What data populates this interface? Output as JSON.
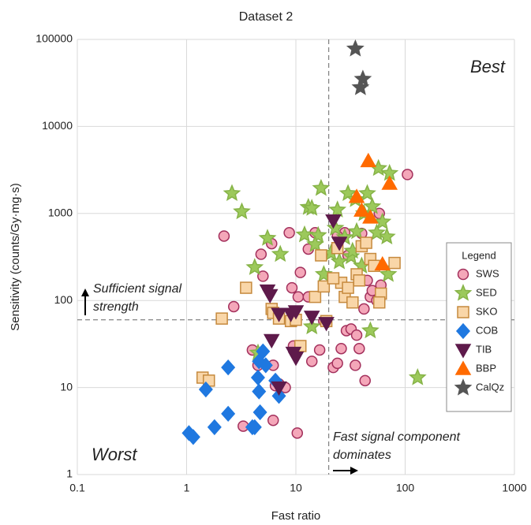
{
  "chart_data": {
    "type": "scatter",
    "title": "Dataset 2",
    "x_label": "Fast ratio",
    "y_label": "Sensitivity (counts/Gy·mg·s)",
    "xlim": [
      0.1,
      1000
    ],
    "ylim": [
      1,
      100000
    ],
    "log_x": true,
    "log_y": true,
    "grid": true,
    "xticks": [
      0.1,
      1,
      10,
      100,
      1000
    ],
    "yticks": [
      1,
      10,
      100,
      1000,
      10000,
      100000
    ],
    "vlines": [
      20
    ],
    "hlines": [
      60
    ],
    "legend_title": "Legend",
    "legend": "right",
    "annotations": [
      "Best",
      "Worst",
      "Sufficient signal",
      "strength",
      "Fast signal component",
      "dominates"
    ],
    "series": [
      {
        "name": "SWS",
        "marker": "circle",
        "color": "#f4a7b9",
        "edgecolor": "#a3305c",
        "x": [
          2.2,
          2.7,
          4.0,
          4.5,
          4.8,
          5,
          6,
          6.2,
          6.5,
          6.2,
          3.3,
          7,
          8,
          8.7,
          9.2,
          9.5,
          10.5,
          11,
          10.3,
          13,
          15,
          13,
          14,
          16.5,
          18,
          22,
          24,
          26,
          28,
          29,
          30,
          32,
          35,
          36,
          38,
          40,
          42,
          43,
          45,
          48,
          50,
          55,
          58,
          60,
          105,
          24
        ],
        "y": [
          550,
          85,
          27,
          18,
          340,
          190,
          450,
          18,
          10.5,
          4.2,
          3.6,
          11,
          10,
          600,
          140,
          30,
          110,
          210,
          3,
          390,
          600,
          110,
          20,
          27,
          58,
          17,
          19,
          28,
          600,
          45,
          330,
          47,
          18,
          40,
          28,
          590,
          80,
          12,
          170,
          110,
          130,
          100,
          1000,
          150,
          2800,
          550
        ]
      },
      {
        "name": "SED",
        "marker": "star",
        "color": "#9cc95b",
        "edgecolor": "#86b347",
        "x": [
          2.6,
          3.2,
          5.5,
          7.2,
          13,
          14,
          17,
          16,
          15,
          12,
          21,
          23,
          24,
          28,
          30,
          32,
          33,
          36,
          40,
          42,
          45,
          50,
          57,
          62,
          68,
          72,
          70,
          48,
          130,
          14,
          4.2,
          4.5,
          25,
          18,
          35,
          55
        ],
        "y": [
          1700,
          1050,
          520,
          340,
          1180,
          1150,
          1950,
          560,
          440,
          570,
          350,
          680,
          1100,
          530,
          1700,
          320,
          370,
          620,
          250,
          1000,
          1700,
          1200,
          3300,
          800,
          540,
          2900,
          200,
          45,
          13,
          50,
          240,
          25,
          280,
          200,
          1450,
          600
        ]
      },
      {
        "name": "SKO",
        "marker": "square",
        "color": "#f9d6a8",
        "edgecolor": "#c68a3e",
        "x": [
          1.4,
          1.6,
          2.1,
          3.5,
          6,
          6.2,
          7,
          9,
          10,
          11,
          15,
          17,
          18,
          19,
          24,
          26,
          28,
          30,
          33,
          36,
          38,
          40,
          44,
          48,
          52,
          60,
          58,
          80,
          22
        ],
        "y": [
          13,
          12,
          62,
          140,
          80,
          72,
          62,
          58,
          60,
          30,
          110,
          330,
          145,
          58,
          400,
          160,
          110,
          140,
          95,
          200,
          170,
          420,
          460,
          300,
          250,
          120,
          95,
          270,
          180
        ]
      },
      {
        "name": "COB",
        "marker": "diamond",
        "color": "#1f78e0",
        "edgecolor": "#1f78e0",
        "x": [
          1.05,
          1.15,
          1.5,
          1.8,
          2.4,
          2.4,
          4.0,
          4.2,
          4.5,
          4.6,
          4.7,
          5,
          5.3,
          7,
          4.6,
          6.5
        ],
        "y": [
          3,
          2.7,
          9.5,
          3.5,
          5,
          17,
          3.5,
          3.5,
          13,
          20,
          5.2,
          26,
          18,
          8,
          9,
          12
        ]
      },
      {
        "name": "TIB",
        "marker": "triangle-down",
        "color": "#5e1a4b",
        "edgecolor": "#5e1a4b",
        "x": [
          22,
          25,
          5.5,
          5.8,
          7,
          9,
          10,
          14,
          19,
          6,
          9.5,
          10,
          7
        ],
        "y": [
          830,
          460,
          130,
          115,
          70,
          70,
          75,
          65,
          55,
          35,
          25,
          22,
          10
        ]
      },
      {
        "name": "BBP",
        "marker": "triangle-up",
        "color": "#ff6a00",
        "edgecolor": "#ff6a00",
        "x": [
          46,
          36,
          40,
          48,
          72,
          62
        ],
        "y": [
          4000,
          1550,
          1080,
          900,
          2200,
          260
        ]
      },
      {
        "name": "CalQz",
        "marker": "star",
        "color": "#555555",
        "edgecolor": "#555555",
        "x": [
          35,
          41,
          39
        ],
        "y": [
          78000,
          35000,
          28000
        ]
      }
    ]
  }
}
